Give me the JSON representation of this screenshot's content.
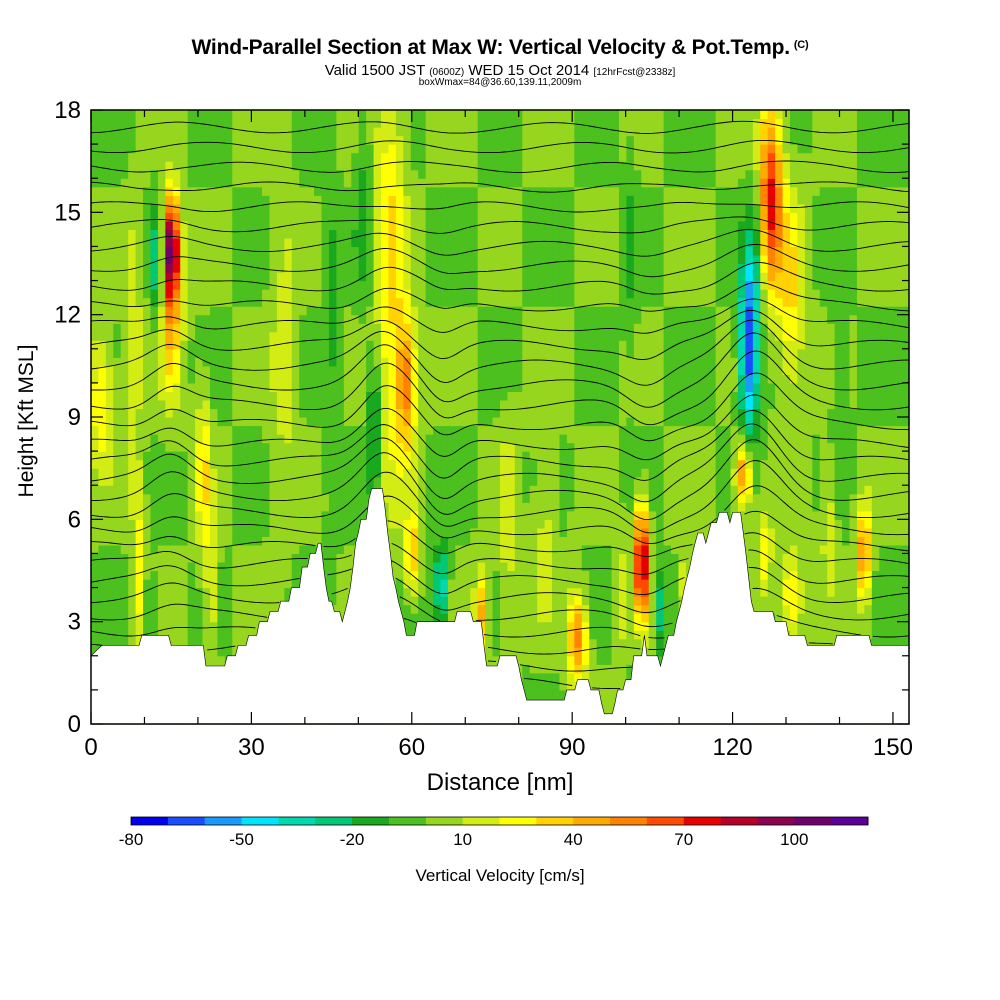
{
  "title": {
    "main": "Wind-Parallel Section at Max W: Vertical Velocity & Pot.Temp.",
    "copyright": "(C)",
    "valid_prefix": "Valid 1500 JST",
    "valid_utc": "(0600Z)",
    "valid_date": "WED 15 Oct 2014",
    "forecast": "[12hrFcst@2338z]",
    "box_info": "boxWmax=84@36.60,139.11,2009m"
  },
  "chart_data": {
    "type": "heatmap",
    "xlabel": "Distance [nm]",
    "ylabel": "Height [Kft MSL]",
    "xlim": [
      0,
      153
    ],
    "ylim": [
      0,
      18
    ],
    "x_ticks": [
      "0",
      "30",
      "60",
      "90",
      "120",
      "150"
    ],
    "y_ticks": [
      "0",
      "3",
      "6",
      "9",
      "12",
      "15",
      "18"
    ],
    "colorbar": {
      "label": "Vertical Velocity [cm/s]",
      "tick_labels": [
        "-80",
        "-50",
        "-20",
        "10",
        "40",
        "70",
        "100"
      ],
      "colors": [
        "#0000ee",
        "#1a4dff",
        "#1a99ff",
        "#00e5ff",
        "#00d9b0",
        "#00c878",
        "#19a81e",
        "#4bc01e",
        "#96d61e",
        "#d2ec14",
        "#ffff00",
        "#ffd200",
        "#ffaa00",
        "#ff8200",
        "#ff4b00",
        "#e60000",
        "#b40028",
        "#8c0050",
        "#6e006e",
        "#5a0096"
      ]
    },
    "terrain_kft": [
      [
        0,
        2.0
      ],
      [
        2,
        2.3
      ],
      [
        9,
        2.3
      ],
      [
        9.5,
        2.6
      ],
      [
        14.5,
        2.6
      ],
      [
        15,
        2.3
      ],
      [
        21,
        2.3
      ],
      [
        21.5,
        1.7
      ],
      [
        25,
        1.7
      ],
      [
        25.5,
        2.0
      ],
      [
        27,
        2.0
      ],
      [
        27.5,
        2.3
      ],
      [
        29,
        2.3
      ],
      [
        29.5,
        2.6
      ],
      [
        31,
        2.6
      ],
      [
        31.5,
        3.0
      ],
      [
        33,
        3.0
      ],
      [
        33.5,
        3.3
      ],
      [
        35,
        3.3
      ],
      [
        35.5,
        3.6
      ],
      [
        37,
        3.6
      ],
      [
        37.5,
        4.0
      ],
      [
        39,
        4.0
      ],
      [
        39.5,
        4.6
      ],
      [
        40.5,
        4.6
      ],
      [
        41,
        5.0
      ],
      [
        42,
        5.0
      ],
      [
        42.5,
        5.3
      ],
      [
        43,
        5.3
      ],
      [
        43.5,
        4.6
      ],
      [
        44,
        4.0
      ],
      [
        44.5,
        3.6
      ],
      [
        45,
        3.6
      ],
      [
        45.5,
        3.3
      ],
      [
        46.5,
        3.3
      ],
      [
        47,
        3.0
      ],
      [
        47.5,
        3.3
      ],
      [
        48,
        3.6
      ],
      [
        48.5,
        4.0
      ],
      [
        49,
        4.6
      ],
      [
        49.5,
        5.3
      ],
      [
        50,
        5.6
      ],
      [
        50.5,
        6.0
      ],
      [
        51.5,
        6.0
      ],
      [
        52,
        6.6
      ],
      [
        52.5,
        6.9
      ],
      [
        54.5,
        6.9
      ],
      [
        55,
        6.3
      ],
      [
        55.5,
        5.6
      ],
      [
        56,
        5.0
      ],
      [
        56.5,
        4.3
      ],
      [
        57,
        4.0
      ],
      [
        57.5,
        3.6
      ],
      [
        58,
        3.3
      ],
      [
        58.5,
        3.0
      ],
      [
        59,
        2.6
      ],
      [
        60.5,
        2.6
      ],
      [
        61,
        3.0
      ],
      [
        68,
        3.0
      ],
      [
        68.5,
        3.3
      ],
      [
        71,
        3.3
      ],
      [
        71.5,
        3.0
      ],
      [
        73,
        3.0
      ],
      [
        73.5,
        2.3
      ],
      [
        74,
        1.7
      ],
      [
        76,
        1.7
      ],
      [
        76.5,
        2.0
      ],
      [
        79.5,
        2.0
      ],
      [
        80,
        1.7
      ],
      [
        80.5,
        1.3
      ],
      [
        81,
        1.0
      ],
      [
        81.5,
        0.7
      ],
      [
        88.5,
        0.7
      ],
      [
        89,
        1.0
      ],
      [
        90.5,
        1.0
      ],
      [
        91,
        1.3
      ],
      [
        93,
        1.3
      ],
      [
        93.5,
        1.0
      ],
      [
        95,
        1.0
      ],
      [
        95.5,
        0.6
      ],
      [
        96,
        0.3
      ],
      [
        97.5,
        0.3
      ],
      [
        98,
        0.6
      ],
      [
        98.5,
        1.0
      ],
      [
        99.5,
        1.0
      ],
      [
        100,
        1.3
      ],
      [
        101,
        1.3
      ],
      [
        101.5,
        2.0
      ],
      [
        103,
        2.0
      ],
      [
        103.5,
        2.6
      ],
      [
        104,
        2.0
      ],
      [
        106,
        2.0
      ],
      [
        106.5,
        1.7
      ],
      [
        107,
        2.0
      ],
      [
        107.5,
        2.3
      ],
      [
        108,
        2.6
      ],
      [
        109,
        2.6
      ],
      [
        109.5,
        3.0
      ],
      [
        110,
        3.3
      ],
      [
        110.5,
        3.6
      ],
      [
        111,
        4.0
      ],
      [
        111.5,
        4.3
      ],
      [
        112,
        4.6
      ],
      [
        112.5,
        5.0
      ],
      [
        113,
        5.3
      ],
      [
        113.5,
        5.6
      ],
      [
        114.5,
        5.6
      ],
      [
        115,
        5.3
      ],
      [
        115.5,
        5.6
      ],
      [
        116,
        5.9
      ],
      [
        117,
        5.9
      ],
      [
        117.5,
        6.2
      ],
      [
        119,
        6.2
      ],
      [
        119.5,
        5.9
      ],
      [
        120,
        6.2
      ],
      [
        121.5,
        6.2
      ],
      [
        122,
        5.6
      ],
      [
        122.5,
        5.0
      ],
      [
        123,
        4.3
      ],
      [
        123.5,
        3.6
      ],
      [
        124,
        3.3
      ],
      [
        127.5,
        3.3
      ],
      [
        128,
        3.0
      ],
      [
        130,
        3.0
      ],
      [
        130.5,
        2.6
      ],
      [
        133.5,
        2.6
      ],
      [
        134,
        2.3
      ],
      [
        139,
        2.3
      ],
      [
        139.5,
        2.6
      ],
      [
        145.5,
        2.6
      ],
      [
        146,
        2.3
      ],
      [
        153,
        2.3
      ]
    ],
    "w_cells": [
      {
        "x": 15,
        "z": 14.0,
        "sx": 1.6,
        "sz": 1.5,
        "w": 92
      },
      {
        "x": 15,
        "z": 12.0,
        "sx": 2.0,
        "sz": 2.5,
        "w": 40
      },
      {
        "x": 12.5,
        "z": 13.5,
        "sx": 1.1,
        "sz": 1.8,
        "w": -35
      },
      {
        "x": 8,
        "z": 11.0,
        "sx": 1.5,
        "sz": 4,
        "w": 18
      },
      {
        "x": 21,
        "z": 7.5,
        "sx": 1.4,
        "sz": 2.5,
        "w": 30
      },
      {
        "x": 11,
        "z": 3.3,
        "sx": 0.8,
        "sz": 1.2,
        "w": -25
      },
      {
        "x": 9,
        "z": 4.5,
        "sx": 1.2,
        "sz": 2.5,
        "w": 25
      },
      {
        "x": 22.5,
        "z": 4.0,
        "sx": 1.2,
        "sz": 2,
        "w": 22
      },
      {
        "x": 56,
        "z": 13.5,
        "sx": 2.8,
        "sz": 6.5,
        "w": 32
      },
      {
        "x": 59,
        "z": 10.0,
        "sx": 1.8,
        "sz": 2,
        "w": 55
      },
      {
        "x": 53,
        "z": 8.8,
        "sx": 1.2,
        "sz": 2.2,
        "w": -30
      },
      {
        "x": 51,
        "z": 15.5,
        "sx": 1.6,
        "sz": 3,
        "w": -15
      },
      {
        "x": 60,
        "z": 5.0,
        "sx": 1.3,
        "sz": 1.2,
        "w": 45
      },
      {
        "x": 65.5,
        "z": 4.0,
        "sx": 1.3,
        "sz": 1.2,
        "w": -45
      },
      {
        "x": 73,
        "z": 3.3,
        "sx": 1.3,
        "sz": 1.2,
        "w": 45
      },
      {
        "x": 78,
        "z": 6.0,
        "sx": 1.8,
        "sz": 3,
        "w": 18
      },
      {
        "x": 91,
        "z": 2.5,
        "sx": 1.8,
        "sz": 1.3,
        "w": 55
      },
      {
        "x": 85,
        "z": 6.0,
        "sx": 2.0,
        "sz": 3,
        "w": 15
      },
      {
        "x": 103,
        "z": 4.8,
        "sx": 1.3,
        "sz": 1.6,
        "w": 96
      },
      {
        "x": 106,
        "z": 3.3,
        "sx": 0.7,
        "sz": 1.2,
        "w": -40
      },
      {
        "x": 99,
        "z": 3.8,
        "sx": 1.0,
        "sz": 1.8,
        "w": 20
      },
      {
        "x": 111,
        "z": 4.0,
        "sx": 1.0,
        "sz": 1.5,
        "w": 18
      },
      {
        "x": 123,
        "z": 11.0,
        "sx": 1.7,
        "sz": 2.5,
        "w": -70
      },
      {
        "x": 124.5,
        "z": 14.0,
        "sx": 1.6,
        "sz": 3,
        "w": -25
      },
      {
        "x": 127,
        "z": 15.5,
        "sx": 2.4,
        "sz": 2.8,
        "w": 75
      },
      {
        "x": 131,
        "z": 12.5,
        "sx": 2.5,
        "sz": 3,
        "w": 30
      },
      {
        "x": 122,
        "z": 7.3,
        "sx": 1.5,
        "sz": 1,
        "w": 60
      },
      {
        "x": 126,
        "z": 5.0,
        "sx": 1.4,
        "sz": 1.4,
        "w": 25
      },
      {
        "x": 131,
        "z": 3.8,
        "sx": 2.0,
        "sz": 1.3,
        "w": 35
      },
      {
        "x": 144.5,
        "z": 5.0,
        "sx": 1.4,
        "sz": 1.5,
        "w": 50
      },
      {
        "x": 138,
        "z": 6.0,
        "sx": 1.5,
        "sz": 2,
        "w": 18
      },
      {
        "x": 140,
        "z": 10.0,
        "sx": 1.8,
        "sz": 2,
        "w": -10
      },
      {
        "x": 101,
        "z": 14.0,
        "sx": 1.2,
        "sz": 3,
        "w": -12
      },
      {
        "x": 36,
        "z": 11.0,
        "sx": 2.5,
        "sz": 5,
        "w": 14
      },
      {
        "x": 45,
        "z": 12.0,
        "sx": 1.5,
        "sz": 5,
        "w": -12
      },
      {
        "x": 2,
        "z": 9.5,
        "sx": 2.5,
        "sz": 2,
        "w": 30
      }
    ]
  }
}
